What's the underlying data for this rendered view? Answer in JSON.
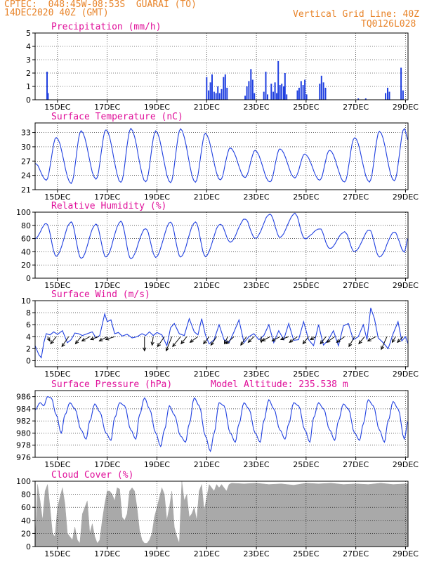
{
  "header": {
    "line1": "CPTEC:  048:45W-08:53S  GUARAI (TO)",
    "line2": "14DEC2020 40Z (GMT)",
    "grid_note": "Vertical Grid Line: 40Z",
    "code": "TQ0126L028"
  },
  "colors": {
    "header": "#e8842a",
    "panel_title": "#e0109a",
    "series": "#2040e0",
    "cloud": "#a9a9a9",
    "wind_arrow": "#000000"
  },
  "chart_data": [
    {
      "type": "bar",
      "title": "Precipitation (mm/h)",
      "x_ticks": [
        "15DEC",
        "17DEC",
        "19DEC",
        "21DEC",
        "23DEC",
        "25DEC",
        "27DEC",
        "29DEC"
      ],
      "x_range_days": [
        14.1,
        29.1
      ],
      "ylim": [
        0,
        5
      ],
      "y_ticks": [
        0,
        1,
        2,
        3,
        4,
        5
      ],
      "grid": true,
      "bars": [
        {
          "x": 14.58,
          "y": 2.1
        },
        {
          "x": 14.62,
          "y": 0.5
        },
        {
          "x": 21.0,
          "y": 1.7
        },
        {
          "x": 21.08,
          "y": 0.7
        },
        {
          "x": 21.15,
          "y": 1.3
        },
        {
          "x": 21.22,
          "y": 1.9
        },
        {
          "x": 21.3,
          "y": 0.6
        },
        {
          "x": 21.38,
          "y": 0.5
        },
        {
          "x": 21.45,
          "y": 1.0
        },
        {
          "x": 21.52,
          "y": 0.5
        },
        {
          "x": 21.6,
          "y": 0.8
        },
        {
          "x": 21.68,
          "y": 1.7
        },
        {
          "x": 21.75,
          "y": 1.9
        },
        {
          "x": 21.82,
          "y": 0.9
        },
        {
          "x": 22.55,
          "y": 0.3
        },
        {
          "x": 22.62,
          "y": 1.0
        },
        {
          "x": 22.7,
          "y": 1.4
        },
        {
          "x": 22.78,
          "y": 2.3
        },
        {
          "x": 22.85,
          "y": 1.5
        },
        {
          "x": 22.92,
          "y": 0.5
        },
        {
          "x": 23.3,
          "y": 0.6
        },
        {
          "x": 23.38,
          "y": 2.1
        },
        {
          "x": 23.45,
          "y": 0.4
        },
        {
          "x": 23.6,
          "y": 1.2
        },
        {
          "x": 23.68,
          "y": 0.6
        },
        {
          "x": 23.75,
          "y": 1.3
        },
        {
          "x": 23.82,
          "y": 0.5
        },
        {
          "x": 23.88,
          "y": 2.9
        },
        {
          "x": 23.95,
          "y": 1.1
        },
        {
          "x": 24.02,
          "y": 1.2
        },
        {
          "x": 24.1,
          "y": 1.0
        },
        {
          "x": 24.15,
          "y": 2.0
        },
        {
          "x": 24.22,
          "y": 0.4
        },
        {
          "x": 24.65,
          "y": 0.7
        },
        {
          "x": 24.72,
          "y": 0.9
        },
        {
          "x": 24.8,
          "y": 1.4
        },
        {
          "x": 24.88,
          "y": 1.1
        },
        {
          "x": 24.95,
          "y": 1.5
        },
        {
          "x": 25.02,
          "y": 0.4
        },
        {
          "x": 25.55,
          "y": 1.2
        },
        {
          "x": 25.62,
          "y": 1.8
        },
        {
          "x": 25.7,
          "y": 1.3
        },
        {
          "x": 25.78,
          "y": 0.9
        },
        {
          "x": 27.1,
          "y": 0.1
        },
        {
          "x": 27.4,
          "y": 0.1
        },
        {
          "x": 28.2,
          "y": 0.5
        },
        {
          "x": 28.28,
          "y": 0.9
        },
        {
          "x": 28.35,
          "y": 0.6
        },
        {
          "x": 28.82,
          "y": 2.4
        },
        {
          "x": 28.9,
          "y": 0.7
        }
      ]
    },
    {
      "type": "line",
      "title": "Surface Temperature (nC)",
      "x_ticks": [
        "15DEC",
        "17DEC",
        "19DEC",
        "21DEC",
        "23DEC",
        "25DEC",
        "27DEC",
        "29DEC"
      ],
      "x_range_days": [
        14.1,
        29.1
      ],
      "ylim": [
        21,
        35
      ],
      "y_ticks": [
        21,
        24,
        27,
        30,
        33
      ],
      "grid": true,
      "daily_extremes": {
        "min_days": [
          14.1,
          14.55,
          15.55,
          16.55,
          17.55,
          18.55,
          19.55,
          20.55,
          21.55,
          22.55,
          23.55,
          24.55,
          25.55,
          26.55,
          27.55,
          28.55
        ],
        "min_values": [
          26.5,
          23.0,
          22.3,
          23.2,
          22.5,
          22.6,
          22.5,
          22.5,
          23.0,
          23.5,
          22.6,
          23.5,
          23.0,
          22.6,
          22.6,
          22.8
        ],
        "max_days": [
          14.95,
          15.95,
          16.95,
          17.95,
          18.95,
          19.95,
          20.95,
          21.95,
          22.95,
          23.95,
          24.95,
          25.95,
          26.95,
          27.95,
          28.95
        ],
        "max_values": [
          32.0,
          33.3,
          33.6,
          33.8,
          33.3,
          33.7,
          32.8,
          29.8,
          29.2,
          29.6,
          28.5,
          29.3,
          31.9,
          33.2,
          33.8
        ],
        "end_value": 31.5
      }
    },
    {
      "type": "line",
      "title": "Relative Humidity (%)",
      "x_ticks": [
        "15DEC",
        "17DEC",
        "19DEC",
        "21DEC",
        "23DEC",
        "25DEC",
        "27DEC",
        "29DEC"
      ],
      "x_range_days": [
        14.1,
        29.1
      ],
      "ylim": [
        0,
        100
      ],
      "y_ticks": [
        0,
        20,
        40,
        60,
        80,
        100
      ],
      "grid": true,
      "daily_extremes": {
        "max_days": [
          14.1,
          14.55,
          15.55,
          16.55,
          17.55,
          18.55,
          19.55,
          20.55,
          21.55,
          22.55,
          23.55,
          24.55,
          25.55,
          26.55,
          27.55,
          28.55
        ],
        "max_values": [
          60,
          83,
          85,
          82,
          86,
          75,
          85,
          85,
          82,
          90,
          97,
          98,
          75,
          70,
          73,
          70
        ],
        "min_days": [
          14.95,
          15.95,
          16.95,
          17.95,
          18.95,
          19.95,
          20.95,
          21.95,
          22.95,
          23.95,
          24.95,
          25.95,
          26.95,
          27.95,
          28.95
        ],
        "min_values": [
          33,
          30,
          32,
          30,
          32,
          32,
          33,
          55,
          60,
          62,
          60,
          45,
          40,
          32,
          40
        ],
        "end_value": 60
      }
    },
    {
      "type": "line",
      "title": "Surface Wind (m/s)",
      "x_ticks": [
        "15DEC",
        "17DEC",
        "19DEC",
        "21DEC",
        "23DEC",
        "25DEC",
        "27DEC",
        "29DEC"
      ],
      "x_range_days": [
        14.1,
        29.1
      ],
      "ylim": [
        -1,
        10
      ],
      "y_ticks": [
        0,
        2,
        4,
        6,
        8,
        10
      ],
      "grid": true,
      "speed": {
        "x": [
          14.1,
          14.25,
          14.35,
          14.45,
          14.55,
          14.7,
          14.85,
          15.0,
          15.2,
          15.4,
          15.55,
          15.7,
          15.85,
          16.0,
          16.2,
          16.4,
          16.55,
          16.7,
          16.9,
          17.0,
          17.15,
          17.3,
          17.45,
          17.6,
          17.8,
          18.0,
          18.2,
          18.4,
          18.55,
          18.7,
          18.85,
          19.0,
          19.2,
          19.4,
          19.55,
          19.7,
          19.9,
          20.1,
          20.3,
          20.5,
          20.65,
          20.8,
          20.95,
          21.1,
          21.3,
          21.5,
          21.7,
          21.9,
          22.1,
          22.3,
          22.5,
          22.7,
          22.9,
          23.1,
          23.3,
          23.5,
          23.7,
          23.9,
          24.1,
          24.3,
          24.5,
          24.7,
          24.9,
          25.1,
          25.3,
          25.5,
          25.7,
          25.9,
          26.1,
          26.3,
          26.5,
          26.7,
          26.9,
          27.1,
          27.3,
          27.45,
          27.6,
          27.75,
          27.9,
          28.1,
          28.3,
          28.5,
          28.7,
          28.85,
          29.0,
          29.1
        ],
        "y": [
          2.5,
          1.0,
          0.5,
          3.0,
          4.5,
          4.3,
          4.8,
          4.4,
          5.0,
          3.0,
          3.5,
          4.6,
          4.5,
          4.2,
          4.5,
          4.8,
          3.8,
          4.2,
          7.8,
          6.5,
          6.8,
          4.5,
          4.7,
          4.1,
          4.4,
          3.8,
          4.0,
          4.5,
          4.2,
          4.8,
          4.2,
          4.7,
          4.3,
          2.5,
          5.5,
          6.2,
          4.5,
          4.2,
          7.0,
          4.8,
          4.3,
          7.0,
          4.3,
          2.8,
          3.5,
          6.0,
          3.5,
          3.0,
          4.8,
          6.8,
          3.0,
          4.0,
          4.5,
          3.5,
          4.2,
          6.0,
          3.0,
          5.0,
          3.5,
          6.2,
          3.4,
          3.5,
          6.5,
          3.5,
          2.5,
          6.0,
          2.6,
          3.5,
          5.0,
          2.5,
          5.8,
          6.2,
          3.5,
          4.0,
          6.0,
          3.5,
          8.8,
          7.0,
          3.8,
          3.0,
          2.0,
          4.5,
          6.5,
          3.3,
          4.0,
          2.8
        ]
      },
      "wind_vectors": {
        "x": [
          14.6,
          14.95,
          15.45,
          15.95,
          16.3,
          16.65,
          17.0,
          17.3,
          18.5,
          18.85,
          19.3,
          19.6,
          19.95,
          20.2,
          20.65,
          21.1,
          21.4,
          21.85,
          22.1,
          22.6,
          22.9,
          23.2,
          23.55,
          23.95,
          24.3,
          24.65,
          25.1,
          25.4,
          25.8,
          26.15,
          26.55,
          26.95,
          27.35,
          27.8,
          28.25,
          28.6,
          28.9
        ],
        "u": [
          -1,
          2.5,
          3,
          2.5,
          3.5,
          3.5,
          3.5,
          4,
          0,
          0.5,
          3,
          2.5,
          3.5,
          2.5,
          3.5,
          2.5,
          2.5,
          1.5,
          3.5,
          2.5,
          2.5,
          0,
          3.5,
          3.5,
          3.5,
          3.5,
          2.5,
          2.5,
          2.5,
          3.5,
          3.5,
          2.5,
          2.5,
          3.5,
          2.5,
          1.5,
          2.5
        ],
        "v": [
          1.5,
          2.5,
          3.5,
          2.5,
          1.5,
          1,
          1.5,
          1,
          5,
          3,
          3.5,
          5,
          3.5,
          2.5,
          2,
          2.5,
          3,
          2.5,
          2.5,
          3,
          2,
          2,
          1.5,
          1.5,
          1,
          2,
          2.5,
          1,
          2.5,
          2,
          2,
          3.5,
          2.5,
          1.5,
          4.5,
          2,
          2
        ]
      }
    },
    {
      "type": "line",
      "title": "Surface Pressure (hPa)",
      "annotation": "Model Altitude: 235.538 m",
      "x_ticks": [
        "15DEC",
        "17DEC",
        "19DEC",
        "21DEC",
        "23DEC",
        "25DEC",
        "27DEC",
        "29DEC"
      ],
      "x_range_days": [
        14.1,
        29.1
      ],
      "ylim": [
        976,
        987
      ],
      "y_ticks": [
        976,
        978,
        980,
        982,
        984,
        986
      ],
      "grid": true,
      "series": {
        "x": [
          14.1,
          14.3,
          14.45,
          14.6,
          14.75,
          14.95,
          15.15,
          15.3,
          15.5,
          15.7,
          15.95,
          16.15,
          16.3,
          16.5,
          16.7,
          16.95,
          17.15,
          17.3,
          17.5,
          17.7,
          17.95,
          18.15,
          18.3,
          18.5,
          18.7,
          18.95,
          19.15,
          19.3,
          19.5,
          19.7,
          19.95,
          20.15,
          20.3,
          20.5,
          20.7,
          20.95,
          21.15,
          21.3,
          21.5,
          21.7,
          21.95,
          22.15,
          22.3,
          22.5,
          22.7,
          22.95,
          23.15,
          23.3,
          23.5,
          23.7,
          23.95,
          24.15,
          24.3,
          24.5,
          24.7,
          24.95,
          25.15,
          25.3,
          25.5,
          25.7,
          25.95,
          26.15,
          26.3,
          26.5,
          26.7,
          26.95,
          27.15,
          27.3,
          27.5,
          27.7,
          27.95,
          28.15,
          28.3,
          28.5,
          28.7,
          28.95,
          29.1
        ],
        "y": [
          983.8,
          985.0,
          984.5,
          986.0,
          985.8,
          983.0,
          980.0,
          983.0,
          985.0,
          984.0,
          980.5,
          979.0,
          982.0,
          984.8,
          983.5,
          980.0,
          978.8,
          982.5,
          985.0,
          984.5,
          980.5,
          979.0,
          983.0,
          985.8,
          984.0,
          980.0,
          977.8,
          980.5,
          984.5,
          983.0,
          979.5,
          978.5,
          981.5,
          985.8,
          984.5,
          979.5,
          977.0,
          980.0,
          985.0,
          984.5,
          980.0,
          978.5,
          981.5,
          985.0,
          984.0,
          980.0,
          978.5,
          982.0,
          985.5,
          984.0,
          980.5,
          979.0,
          981.5,
          985.0,
          984.5,
          980.5,
          978.5,
          982.5,
          985.0,
          984.0,
          980.5,
          978.8,
          982.0,
          984.8,
          984.0,
          980.0,
          978.8,
          981.5,
          985.5,
          984.5,
          980.5,
          978.5,
          982.0,
          985.2,
          984.0,
          979.0,
          982.0
        ]
      }
    },
    {
      "type": "area",
      "title": "Cloud Cover (%)",
      "x_ticks": [
        "15DEC",
        "17DEC",
        "19DEC",
        "21DEC",
        "23DEC",
        "25DEC",
        "27DEC",
        "29DEC"
      ],
      "x_range_days": [
        14.1,
        29.1
      ],
      "ylim": [
        0,
        100
      ],
      "y_ticks": [
        0,
        20,
        40,
        60,
        80,
        100
      ],
      "grid": true,
      "series": {
        "x": [
          14.1,
          14.2,
          14.3,
          14.4,
          14.5,
          14.6,
          14.7,
          14.8,
          14.9,
          15.0,
          15.1,
          15.2,
          15.3,
          15.4,
          15.5,
          15.6,
          15.7,
          15.8,
          15.9,
          16.0,
          16.1,
          16.2,
          16.3,
          16.4,
          16.5,
          16.6,
          16.7,
          16.8,
          16.9,
          17.0,
          17.1,
          17.2,
          17.3,
          17.4,
          17.5,
          17.6,
          17.7,
          17.8,
          17.9,
          18.0,
          18.1,
          18.2,
          18.3,
          18.4,
          18.5,
          18.6,
          18.7,
          18.8,
          18.9,
          19.0,
          19.1,
          19.2,
          19.3,
          19.4,
          19.5,
          19.6,
          19.7,
          19.8,
          19.9,
          20.0,
          20.1,
          20.2,
          20.3,
          20.4,
          20.5,
          20.6,
          20.7,
          20.8,
          20.9,
          21.0,
          21.1,
          21.2,
          21.3,
          21.4,
          21.5,
          21.6,
          21.7,
          21.8,
          21.9,
          22.0,
          22.5,
          23.0,
          23.5,
          24.0,
          24.5,
          25.0,
          25.5,
          26.0,
          26.5,
          27.0,
          27.5,
          28.0,
          28.5,
          29.0,
          29.1
        ],
        "y": [
          5,
          95,
          70,
          40,
          85,
          95,
          60,
          20,
          15,
          60,
          75,
          90,
          65,
          20,
          15,
          10,
          30,
          10,
          5,
          50,
          60,
          70,
          20,
          35,
          15,
          5,
          10,
          40,
          65,
          85,
          85,
          80,
          70,
          90,
          88,
          45,
          40,
          50,
          85,
          90,
          85,
          60,
          25,
          10,
          5,
          5,
          10,
          20,
          45,
          60,
          75,
          90,
          80,
          40,
          60,
          85,
          30,
          15,
          5,
          100,
          70,
          80,
          45,
          50,
          60,
          40,
          85,
          95,
          55,
          75,
          95,
          90,
          85,
          95,
          90,
          95,
          90,
          85,
          95,
          97,
          96,
          97,
          95,
          96,
          94,
          97,
          96,
          97,
          95,
          96,
          95,
          97,
          95,
          96,
          96
        ]
      }
    }
  ]
}
